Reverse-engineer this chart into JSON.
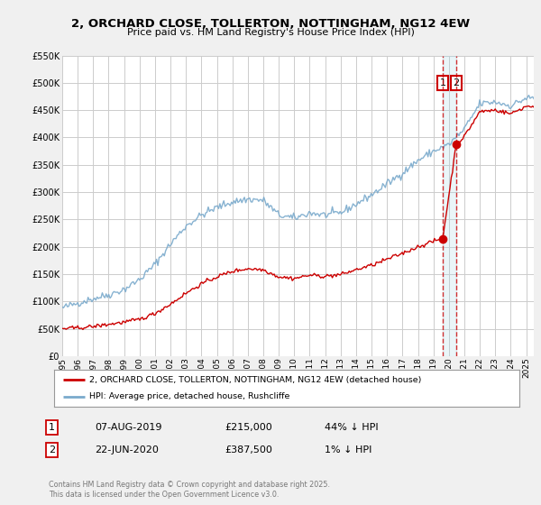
{
  "title": "2, ORCHARD CLOSE, TOLLERTON, NOTTINGHAM, NG12 4EW",
  "subtitle": "Price paid vs. HM Land Registry's House Price Index (HPI)",
  "legend_line1": "2, ORCHARD CLOSE, TOLLERTON, NOTTINGHAM, NG12 4EW (detached house)",
  "legend_line2": "HPI: Average price, detached house, Rushcliffe",
  "transaction1_label": "1",
  "transaction1_date": "07-AUG-2019",
  "transaction1_price": "£215,000",
  "transaction1_hpi": "44% ↓ HPI",
  "transaction2_label": "2",
  "transaction2_date": "22-JUN-2020",
  "transaction2_price": "£387,500",
  "transaction2_hpi": "1% ↓ HPI",
  "footer": "Contains HM Land Registry data © Crown copyright and database right 2025.\nThis data is licensed under the Open Government Licence v3.0.",
  "vline1_x": 2019.6,
  "vline2_x": 2020.47,
  "dot1_x": 2019.6,
  "dot1_y": 215000,
  "dot2_x": 2020.47,
  "dot2_y": 387500,
  "color_red": "#cc0000",
  "color_blue": "#7aaacc",
  "color_grid": "#cccccc",
  "ylim": [
    0,
    550000
  ],
  "xlim": [
    1995,
    2025.5
  ],
  "yticks": [
    0,
    50000,
    100000,
    150000,
    200000,
    250000,
    300000,
    350000,
    400000,
    450000,
    500000,
    550000
  ],
  "xticks": [
    1995,
    1996,
    1997,
    1998,
    1999,
    2000,
    2001,
    2002,
    2003,
    2004,
    2005,
    2006,
    2007,
    2008,
    2009,
    2010,
    2011,
    2012,
    2013,
    2014,
    2015,
    2016,
    2017,
    2018,
    2019,
    2020,
    2021,
    2022,
    2023,
    2024,
    2025
  ],
  "background_color": "#f0f0f0",
  "plot_bg": "#ffffff"
}
